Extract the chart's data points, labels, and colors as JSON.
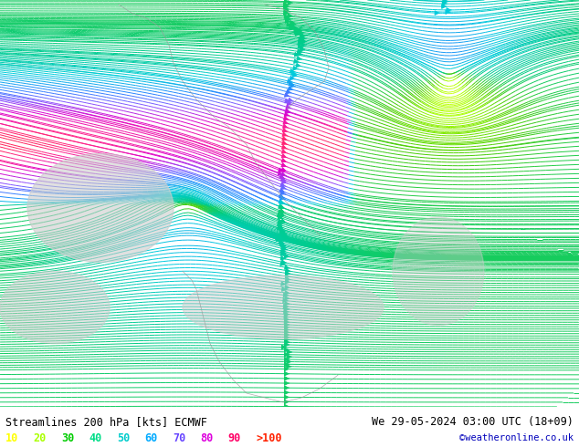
{
  "title_left": "Streamlines 200 hPa [kts] ECMWF",
  "title_right": "We 29-05-2024 03:00 UTC (18+09)",
  "credit": "©weatheronline.co.uk",
  "legend_values": [
    "10",
    "20",
    "30",
    "40",
    "50",
    "60",
    "70",
    "80",
    "90",
    ">100"
  ],
  "legend_colors": [
    "#ffff00",
    "#aaff00",
    "#00cc00",
    "#00dd88",
    "#00cccc",
    "#00aaff",
    "#6644ff",
    "#dd00dd",
    "#ff0066",
    "#ff2200"
  ],
  "bg_color": "#bbee88",
  "ocean_color": "#d8eed8",
  "land_gray": "#cccccc",
  "text_color": "#000000",
  "bottom_bar_color": "#ffffff",
  "figsize": [
    6.34,
    4.9
  ],
  "dpi": 100,
  "coastline_color": "#999999"
}
